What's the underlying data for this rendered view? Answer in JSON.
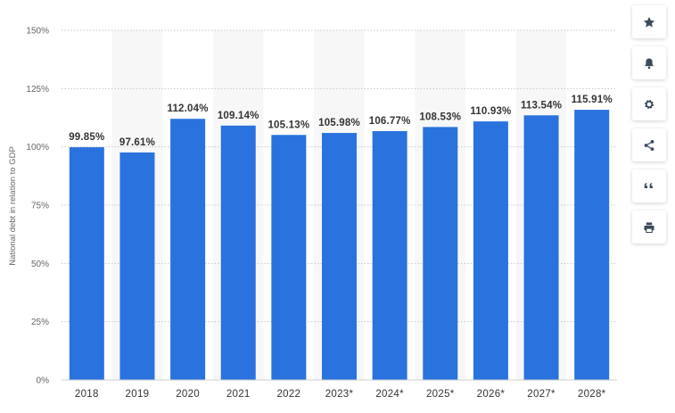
{
  "chart_data": {
    "type": "bar",
    "categories": [
      "2018",
      "2019",
      "2020",
      "2021",
      "2022",
      "2023*",
      "2024*",
      "2025*",
      "2026*",
      "2027*",
      "2028*"
    ],
    "values": [
      99.85,
      97.61,
      112.04,
      109.14,
      105.13,
      105.98,
      106.77,
      108.53,
      110.93,
      113.54,
      115.91
    ],
    "data_labels": [
      "99.85%",
      "97.61%",
      "112.04%",
      "109.14%",
      "105.13%",
      "105.98%",
      "106.77%",
      "108.53%",
      "110.93%",
      "113.54%",
      "115.91%"
    ],
    "y_ticks": [
      0,
      25,
      50,
      75,
      100,
      125,
      150
    ],
    "y_tick_labels": [
      "0%",
      "25%",
      "50%",
      "75%",
      "100%",
      "125%",
      "150%"
    ],
    "ylabel": "National debt in relation to GDP",
    "xlabel": "",
    "ylim": [
      0,
      150
    ],
    "grid": true,
    "bar_color": "#2a72de",
    "band_color": "#f7f7f8"
  },
  "toolbar": {
    "buttons": [
      {
        "name": "favorite-button",
        "icon": "star-icon"
      },
      {
        "name": "notification-button",
        "icon": "bell-icon"
      },
      {
        "name": "settings-button",
        "icon": "gear-icon"
      },
      {
        "name": "share-button",
        "icon": "share-icon"
      },
      {
        "name": "cite-button",
        "icon": "quote-icon"
      },
      {
        "name": "print-button",
        "icon": "printer-icon"
      }
    ],
    "icon_color": "#3c4b5c"
  }
}
